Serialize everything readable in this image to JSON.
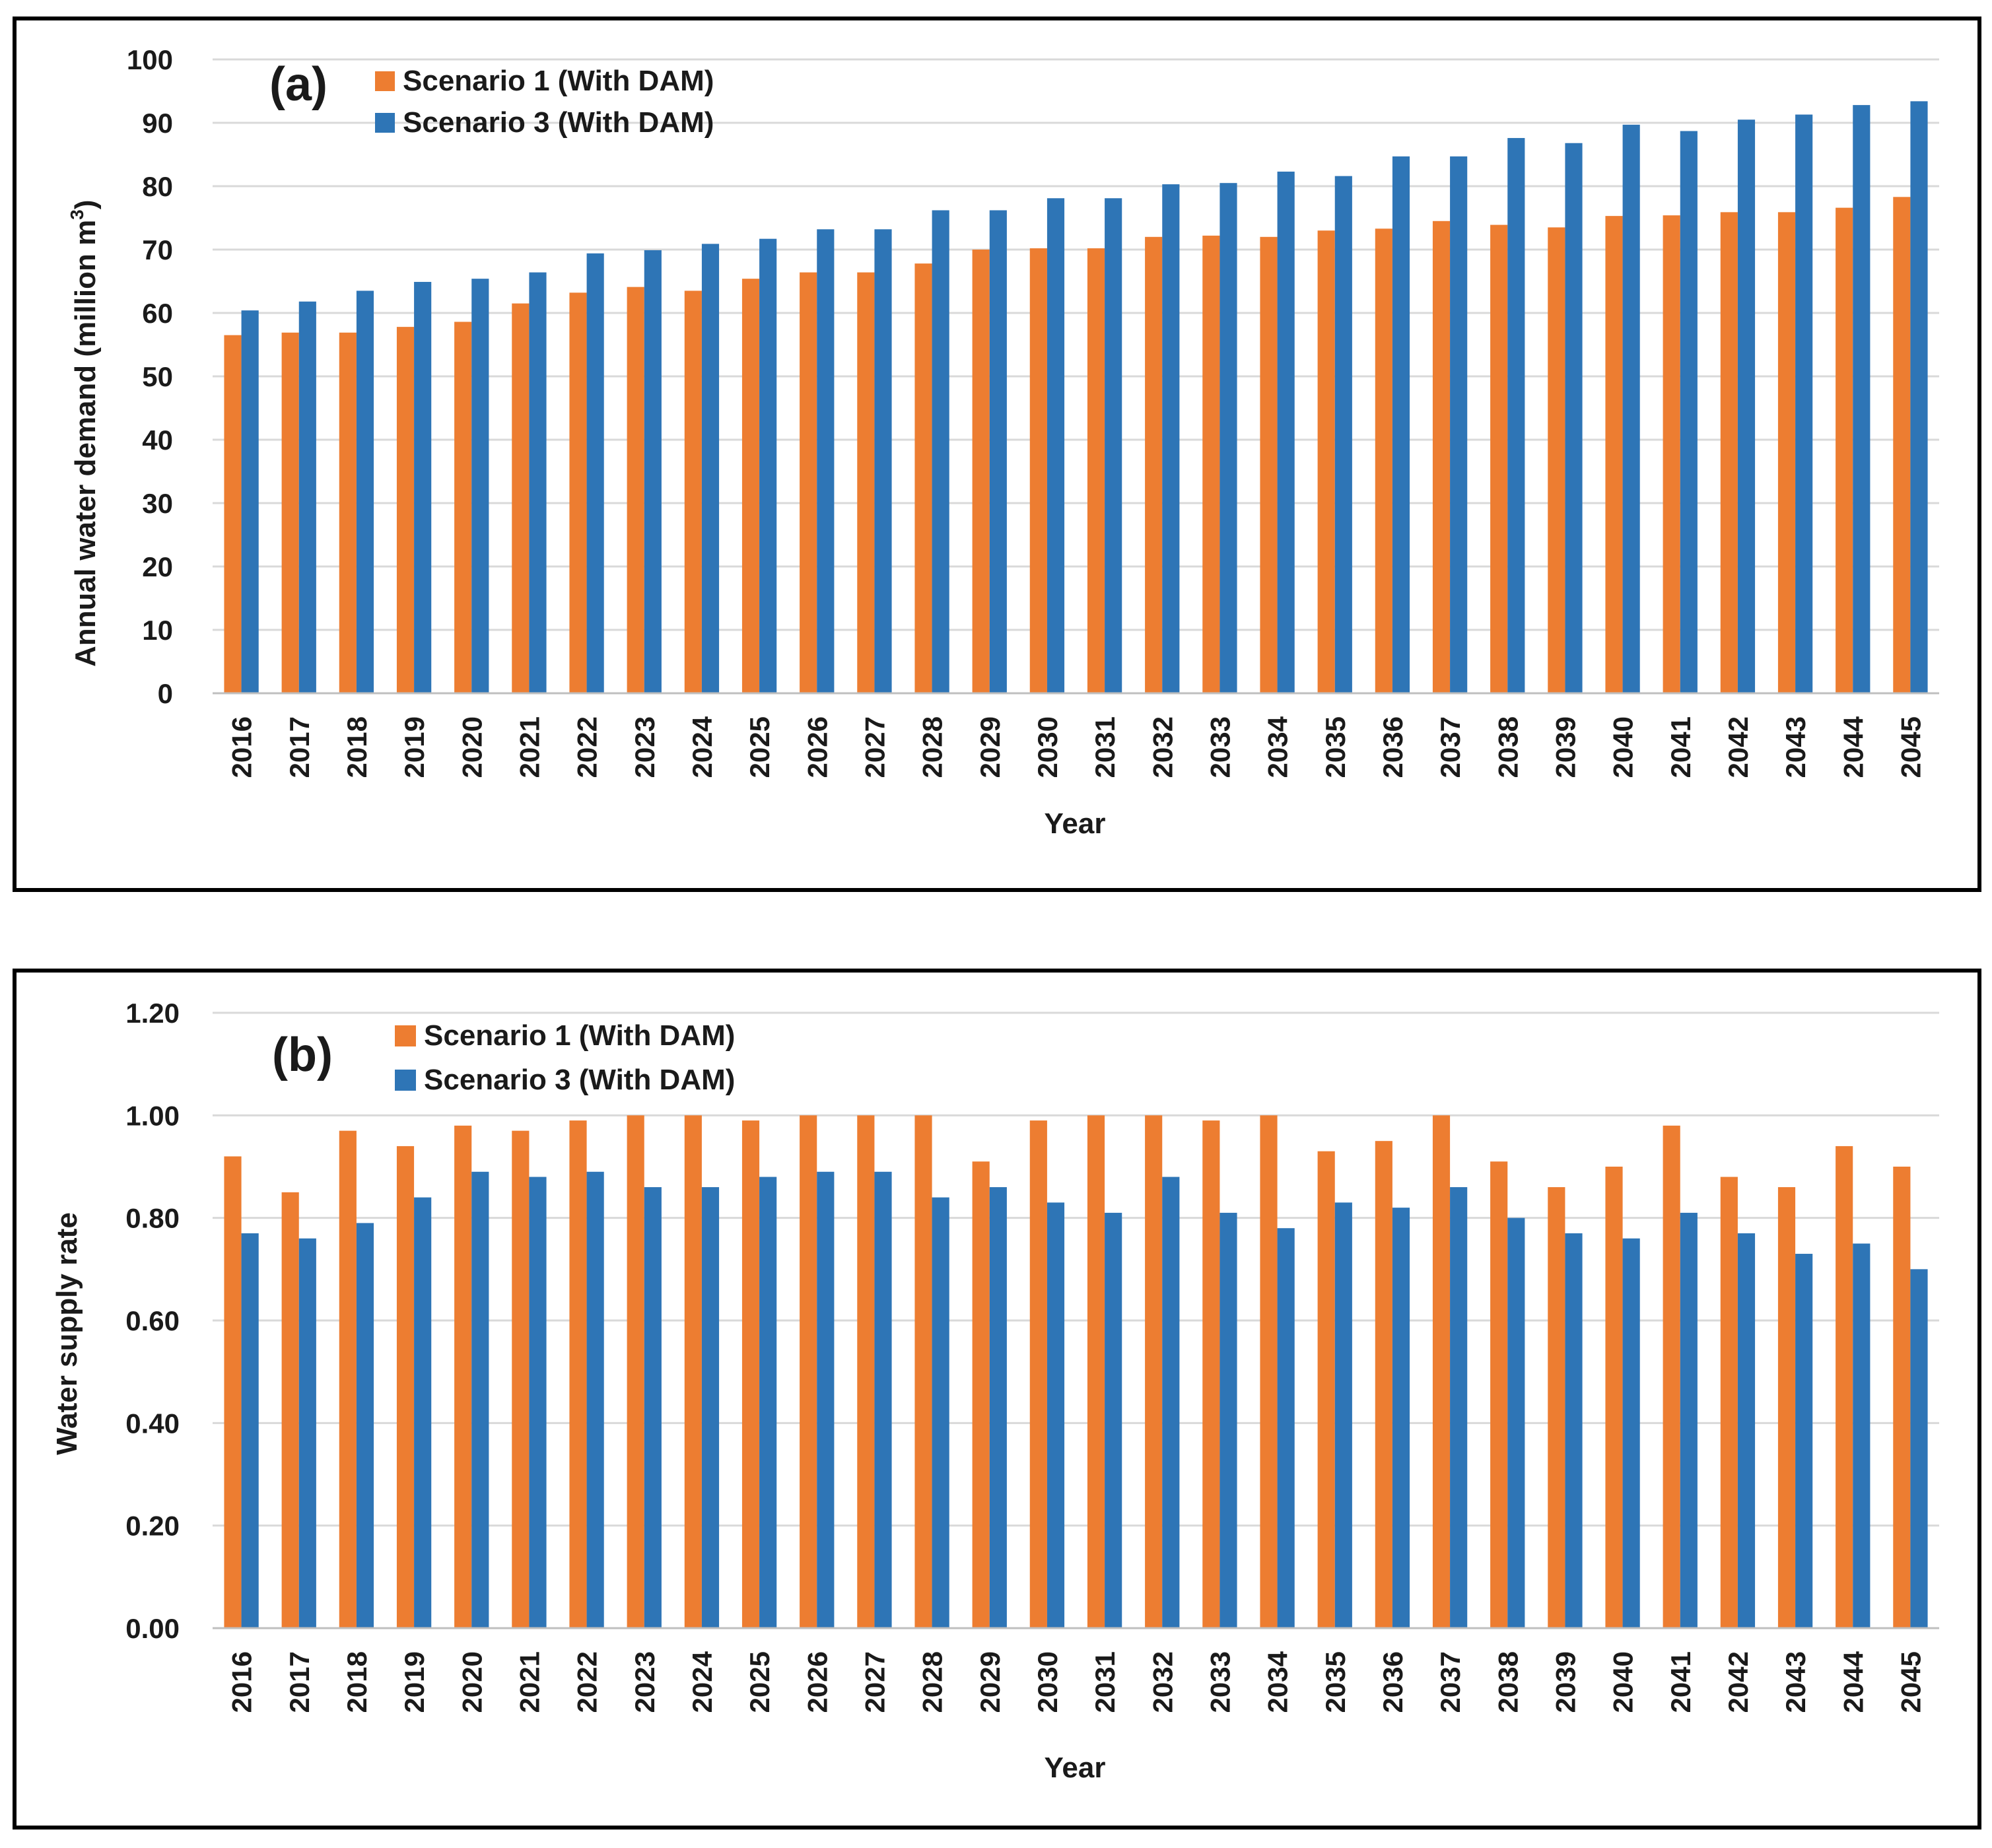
{
  "chart_data": [
    {
      "type": "bar",
      "panel_label": "(a)",
      "xlabel": "Year",
      "ylabel": "Annual water demand (million m",
      "ylabel_sup": "3",
      "ylabel_close": ")",
      "ylim": [
        0,
        100
      ],
      "yticks": [
        "0",
        "10",
        "20",
        "30",
        "40",
        "50",
        "60",
        "70",
        "80",
        "90",
        "100"
      ],
      "grid": true,
      "legend_position": "top-left",
      "categories": [
        "2016",
        "2017",
        "2018",
        "2019",
        "2020",
        "2021",
        "2022",
        "2023",
        "2024",
        "2025",
        "2026",
        "2027",
        "2028",
        "2029",
        "2030",
        "2031",
        "2032",
        "2033",
        "2034",
        "2035",
        "2036",
        "2037",
        "2038",
        "2039",
        "2040",
        "2041",
        "2042",
        "2043",
        "2044",
        "2045"
      ],
      "series": [
        {
          "name": "Scenario 1 (With DAM)",
          "color": "#ED7D31",
          "values": [
            56.5,
            56.9,
            56.9,
            57.8,
            58.6,
            61.5,
            63.2,
            64.1,
            63.5,
            65.4,
            66.4,
            66.4,
            67.8,
            70.0,
            70.2,
            70.2,
            72.0,
            72.2,
            72.0,
            73.0,
            73.3,
            74.5,
            73.9,
            73.5,
            75.3,
            75.4,
            75.9,
            75.9,
            76.6,
            78.3
          ]
        },
        {
          "name": "Scenario 3 (With DAM)",
          "color": "#2E75B6",
          "values": [
            60.4,
            61.8,
            63.5,
            64.9,
            65.4,
            66.4,
            69.4,
            69.9,
            70.9,
            71.7,
            73.2,
            73.2,
            76.2,
            76.2,
            78.1,
            78.1,
            80.3,
            80.5,
            82.3,
            81.6,
            84.7,
            84.7,
            87.6,
            86.8,
            89.7,
            88.7,
            90.5,
            91.3,
            92.8,
            93.4
          ]
        }
      ]
    },
    {
      "type": "bar",
      "panel_label": "(b)",
      "xlabel": "Year",
      "ylabel": "Water supply rate",
      "ylim": [
        0,
        1.2
      ],
      "yticks": [
        "0.00",
        "0.20",
        "0.40",
        "0.60",
        "0.80",
        "1.00",
        "1.20"
      ],
      "grid": true,
      "legend_position": "top-left",
      "categories": [
        "2016",
        "2017",
        "2018",
        "2019",
        "2020",
        "2021",
        "2022",
        "2023",
        "2024",
        "2025",
        "2026",
        "2027",
        "2028",
        "2029",
        "2030",
        "2031",
        "2032",
        "2033",
        "2034",
        "2035",
        "2036",
        "2037",
        "2038",
        "2039",
        "2040",
        "2041",
        "2042",
        "2043",
        "2044",
        "2045"
      ],
      "series": [
        {
          "name": "Scenario 1 (With DAM)",
          "color": "#ED7D31",
          "values": [
            0.92,
            0.85,
            0.97,
            0.94,
            0.98,
            0.97,
            0.99,
            1.0,
            1.0,
            0.99,
            1.0,
            1.0,
            1.0,
            0.91,
            0.99,
            1.0,
            1.0,
            0.99,
            1.0,
            0.93,
            0.95,
            1.0,
            0.91,
            0.86,
            0.9,
            0.98,
            0.88,
            0.86,
            0.94,
            0.9
          ]
        },
        {
          "name": "Scenario 3 (With DAM)",
          "color": "#2E75B6",
          "values": [
            0.77,
            0.76,
            0.79,
            0.84,
            0.89,
            0.88,
            0.89,
            0.86,
            0.86,
            0.88,
            0.89,
            0.89,
            0.84,
            0.86,
            0.83,
            0.81,
            0.88,
            0.81,
            0.78,
            0.83,
            0.82,
            0.86,
            0.8,
            0.77,
            0.76,
            0.81,
            0.77,
            0.73,
            0.75,
            0.7
          ]
        }
      ]
    }
  ]
}
